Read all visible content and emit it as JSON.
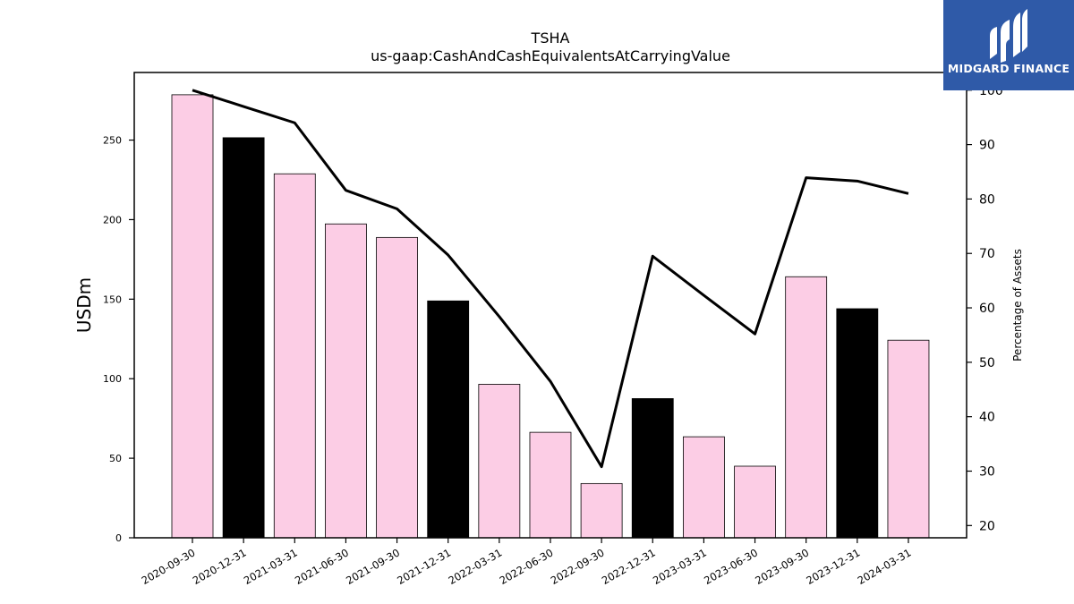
{
  "chart_data": {
    "type": "bar",
    "title": "TSHA",
    "subtitle": "us-gaap:CashAndCashEquivalentsAtCarryingValue",
    "ylabel": "USDm",
    "y2label": "Percentage of Assets",
    "categories": [
      "2020-09-30",
      "2020-12-31",
      "2021-03-31",
      "2021-06-30",
      "2021-09-30",
      "2021-12-31",
      "2022-03-31",
      "2022-06-30",
      "2022-09-30",
      "2022-12-31",
      "2023-03-31",
      "2023-06-30",
      "2023-09-30",
      "2023-12-31",
      "2024-03-31"
    ],
    "series": [
      {
        "values": [
          278.5,
          251.5,
          228.8,
          197.3,
          188.8,
          148.9,
          96.5,
          66.3,
          34.1,
          87.5,
          63.5,
          45.0,
          164.1,
          144.0,
          124.2
        ],
        "colors": [
          "#fccde5",
          "#000000",
          "#fccde5",
          "#fccde5",
          "#fccde5",
          "#000000",
          "#fccde5",
          "#fccde5",
          "#fccde5",
          "#000000",
          "#fccde5",
          "#fccde5",
          "#fccde5",
          "#000000",
          "#fccde5"
        ]
      },
      {
        "type": "line",
        "axis": "right",
        "values": [
          100.0,
          97.0,
          94.0,
          81.6,
          78.2,
          69.7,
          58.4,
          46.5,
          30.8,
          69.5,
          62.3,
          55.2,
          83.9,
          83.3,
          81.0
        ]
      }
    ],
    "ylim": [
      0,
      292.5
    ],
    "yticks": [
      0,
      50,
      100,
      150,
      200,
      250
    ],
    "y2lim": [
      17.75,
      103.25
    ],
    "y2ticks": [
      20,
      30,
      40,
      50,
      60,
      70,
      80,
      90,
      100
    ],
    "grid": false,
    "legend": "none"
  },
  "logo": {
    "name": "midgard-logo-icon",
    "text": "MIDGARD FINANCE"
  }
}
